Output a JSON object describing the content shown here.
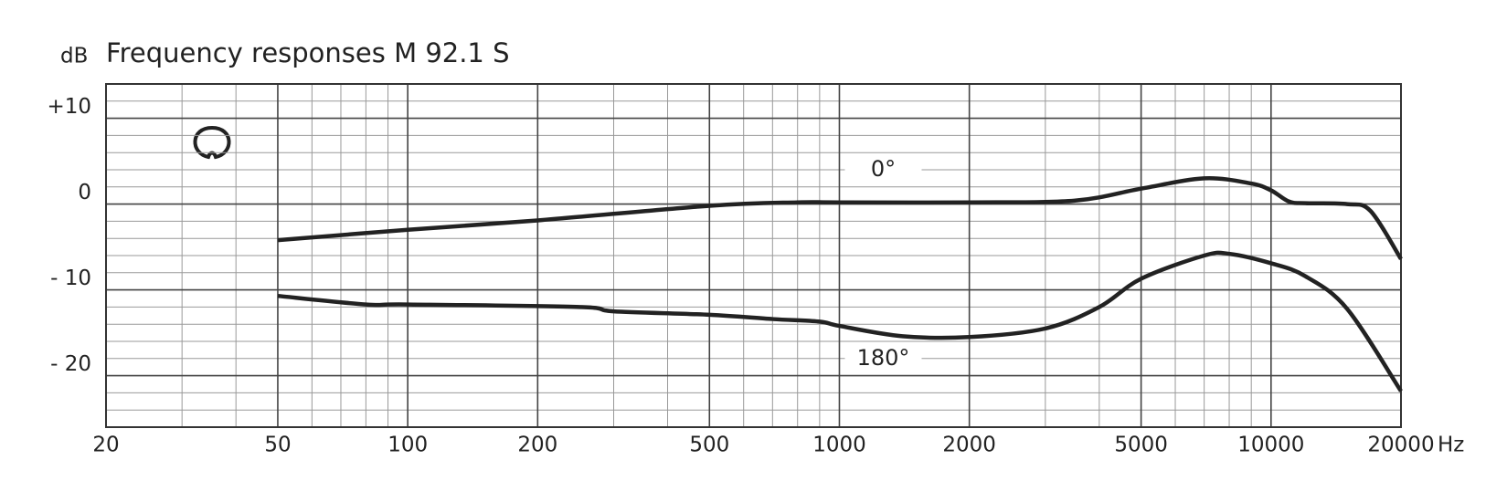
{
  "chart_data": {
    "type": "line",
    "title": "Frequency responses M 92.1 S",
    "ylabel": "dB",
    "xlabel": "Hz",
    "xlog": true,
    "grid": true,
    "xlim": [
      20,
      20000
    ],
    "ylim": [
      -26,
      14
    ],
    "xticks": [
      20,
      50,
      100,
      200,
      500,
      1000,
      2000,
      5000,
      10000,
      20000
    ],
    "yticks": [
      {
        "value": 10,
        "label": "+10"
      },
      0,
      {
        "value": -10,
        "label": "- 10"
      },
      {
        "value": -20,
        "label": "- 20"
      }
    ],
    "series": [
      {
        "name": "0°",
        "color": "#222222",
        "x": [
          50,
          100,
          200,
          500,
          800,
          1000,
          2000,
          3500,
          5000,
          7000,
          9000,
          10000,
          11000,
          12000,
          15000,
          17000,
          20000
        ],
        "values": [
          -4.2,
          -3.0,
          -1.9,
          -0.2,
          0.2,
          0.2,
          0.2,
          0.4,
          1.8,
          3.0,
          2.4,
          1.6,
          0.3,
          0.1,
          0,
          -0.8,
          -6.4
        ]
      },
      {
        "name": "180°",
        "color": "#222222",
        "x": [
          50,
          80,
          100,
          250,
          300,
          500,
          700,
          900,
          1000,
          1400,
          2000,
          3000,
          4000,
          5000,
          7000,
          8000,
          10000,
          12000,
          15000,
          20000
        ],
        "values": [
          -10.7,
          -11.7,
          -11.7,
          -12.0,
          -12.5,
          -12.9,
          -13.4,
          -13.7,
          -14.2,
          -15.4,
          -15.5,
          -14.5,
          -12.0,
          -8.7,
          -6.0,
          -5.8,
          -6.9,
          -8.4,
          -12.2,
          -21.8
        ]
      }
    ]
  }
}
